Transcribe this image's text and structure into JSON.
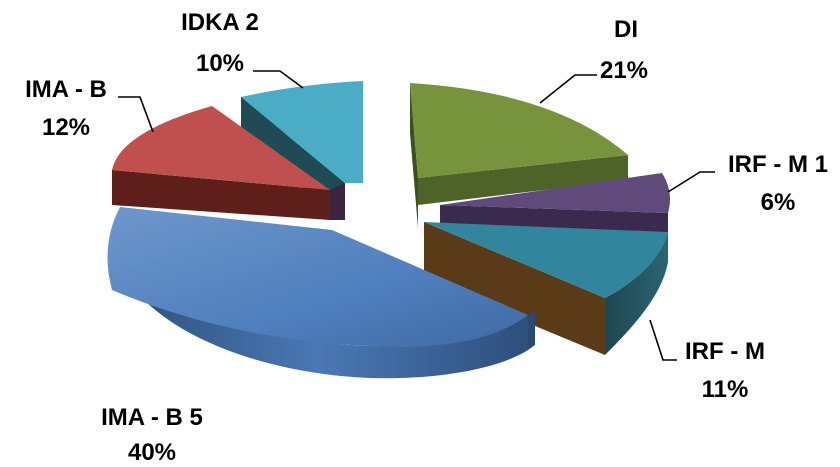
{
  "chart_data": {
    "type": "pie",
    "style": "3d-exploded",
    "legend": "none",
    "title": "",
    "slices": [
      {
        "label": "DI",
        "percent_label": "21%",
        "value": 21,
        "color": "#77933c"
      },
      {
        "label": "IRF - M 1",
        "percent_label": "6%",
        "value": 6,
        "color": "#604a7b"
      },
      {
        "label": "IRF - M",
        "percent_label": "11%",
        "value": 11,
        "color": "#31859c"
      },
      {
        "label": "IMA - B 5",
        "percent_label": "40%",
        "value": 40,
        "color": "#4f81bd"
      },
      {
        "label": "IMA - B",
        "percent_label": "12%",
        "value": 12,
        "color": "#c0504d"
      },
      {
        "label": "IDKA 2",
        "percent_label": "10%",
        "value": 10,
        "color": "#4bacc6"
      }
    ]
  }
}
